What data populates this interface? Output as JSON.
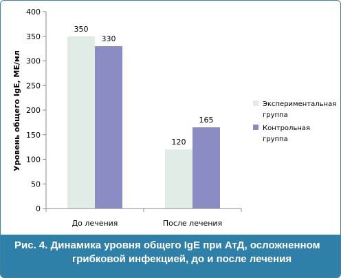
{
  "chart_data": {
    "type": "bar",
    "categories": [
      "До лечения",
      "После лечения"
    ],
    "series": [
      {
        "name": "Экспериментальная группа",
        "values": [
          350,
          120
        ],
        "color": "#e2ece6"
      },
      {
        "name": "Контрольная группа",
        "values": [
          330,
          165
        ],
        "color": "#8c8cc4"
      }
    ],
    "ylabel": "Уровень общего IgE, МЕ/мл",
    "ylim": [
      0,
      400
    ],
    "yticks": [
      0,
      50,
      100,
      150,
      200,
      250,
      300,
      350,
      400
    ],
    "legend_position": "right",
    "legend_lines": [
      [
        "Экспериментальная",
        "группа"
      ],
      [
        "Контрольная",
        "группа"
      ]
    ]
  },
  "caption": {
    "line1": "Рис. 4. Динамика уровня общего IgE при АтД, осложненном",
    "line2": "грибковой инфекцией, до и после лечения",
    "background": "#2f80a8"
  }
}
